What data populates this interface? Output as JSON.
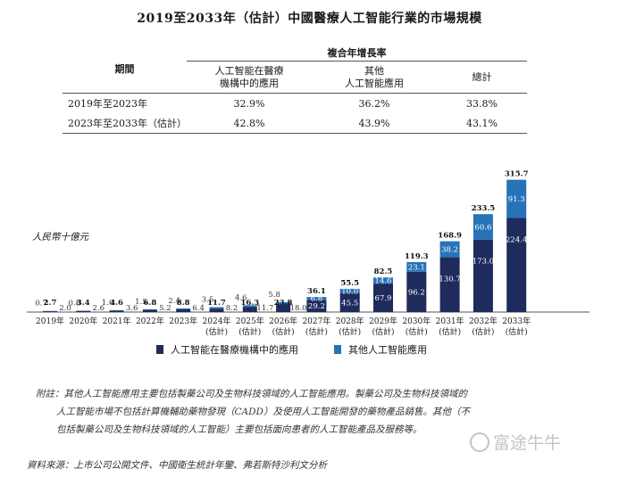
{
  "title": "2019至2033年（估計）中國醫療人工智能行業的市場規模",
  "cagr_table": {
    "period_header": "期間",
    "group_header": "複合年增長率",
    "col1_header_line1": "人工智能在醫療",
    "col1_header_line2": "機構中的應用",
    "col2_header_line1": "其他",
    "col2_header_line2": "人工智能應用",
    "col3_header": "總計",
    "rows": [
      {
        "period": "2019年至2023年",
        "c1": "32.9%",
        "c2": "36.2%",
        "c3": "33.8%"
      },
      {
        "period": "2023年至2033年（估計）",
        "c1": "42.8%",
        "c2": "43.9%",
        "c3": "43.1%"
      }
    ]
  },
  "unit_label": "人民幣十億元",
  "chart_data": {
    "type": "bar",
    "stacked": true,
    "categories": [
      "2019年",
      "2020年",
      "2021年",
      "2022年",
      "2023年",
      "2024年(估計)",
      "2025年(估計)",
      "2026年(估計)",
      "2027年(估計)",
      "2028年(估計)",
      "2029年(估計)",
      "2030年(估計)",
      "2031年(估計)",
      "2032年(估計)",
      "2033年(估計)"
    ],
    "category_lines": [
      [
        "2019年"
      ],
      [
        "2020年"
      ],
      [
        "2021年"
      ],
      [
        "2022年"
      ],
      [
        "2023年"
      ],
      [
        "2024年",
        "(估計)"
      ],
      [
        "2025年",
        "(估計)"
      ],
      [
        "2026年",
        "(估計)"
      ],
      [
        "2027年",
        "(估計)"
      ],
      [
        "2028年",
        "(估計)"
      ],
      [
        "2029年",
        "(估計)"
      ],
      [
        "2030年",
        "(估計)"
      ],
      [
        "2031年",
        "(估計)"
      ],
      [
        "2032年",
        "(估計)"
      ],
      [
        "2033年",
        "(估計)"
      ]
    ],
    "series": [
      {
        "name": "人工智能在醫療機構中的應用",
        "color": "#1f2b5c",
        "values": [
          2.0,
          2.6,
          3.6,
          5.2,
          6.4,
          8.2,
          11.7,
          18.0,
          29.2,
          45.5,
          67.9,
          96.2,
          130.7,
          173.0,
          224.4
        ]
      },
      {
        "name": "其他人工智能應用",
        "color": "#2673b8",
        "values": [
          0.7,
          0.8,
          1.0,
          1.5,
          2.4,
          3.5,
          4.6,
          5.8,
          6.8,
          10.0,
          14.6,
          23.1,
          38.2,
          60.6,
          91.3
        ]
      }
    ],
    "totals": [
      2.7,
      3.4,
      4.6,
      6.8,
      8.8,
      11.7,
      16.3,
      23.8,
      36.1,
      55.5,
      82.5,
      119.3,
      168.9,
      233.5,
      315.7
    ]
  },
  "note_lines": [
    "附註：其他人工智能應用主要包括製藥公司及生物科技領域的人工智能應用。製藥公司及生物科技領域的",
    "人工智能市場不包括計算機輔助藥物發現（CADD）及使用人工智能開發的藥物產品銷售。其他（不",
    "包括製藥公司及生物科技領域的人工智能）主要包括面向患者的人工智能產品及服務等。"
  ],
  "source": "資料來源：上市公司公開文件、中國衛生統計年鑒、弗若斯特沙利文分析",
  "watermark": "富途牛牛"
}
